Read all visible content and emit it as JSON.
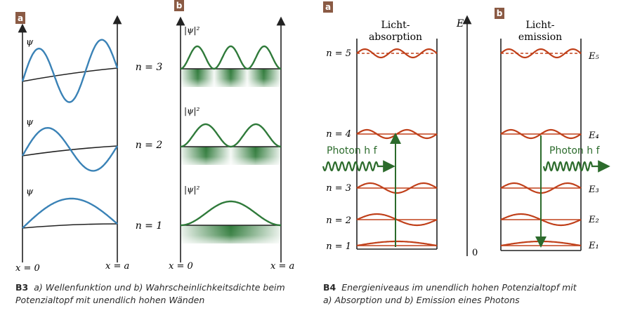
{
  "left": {
    "panel_a_tag": "a",
    "panel_b_tag": "b",
    "psi_label": "ψ",
    "psi_sq_label": "|ψ|²",
    "n_labels": [
      "n = 3",
      "n = 2",
      "n = 1"
    ],
    "x_start": "x = 0",
    "x_end": "x = a",
    "caption_num": "B3",
    "caption_line1": "a) Wellenfunktion und b) Wahrscheinlichkeitsdichte beim",
    "caption_line2": "Potenzialtopf mit unendlich hohen Wänden"
  },
  "right": {
    "panel_a_tag": "a",
    "panel_b_tag": "b",
    "absorption_title": [
      "Licht-",
      "absorption"
    ],
    "emission_title": [
      "Licht-",
      "emission"
    ],
    "energy_axis": "E",
    "zero": "0",
    "levels_left": [
      "n = 5",
      "n = 4",
      "n = 3",
      "n = 2",
      "n = 1"
    ],
    "levels_right": [
      "E₅",
      "E₄",
      "E₃",
      "E₂",
      "E₁"
    ],
    "photon_label": "Photon h f",
    "caption_num": "B4",
    "caption_line1": "Energieniveaus im unendlich hohen Potenzialtopf mit",
    "caption_line2": "a) Absorption und b) Emission eines Photons"
  },
  "colors": {
    "tag_bg": "#8a5a44",
    "wave_blue": "#3a82b6",
    "density_green": "#2f7a3a",
    "level_orange": "#c0401a",
    "arrow_green": "#2c6b2c"
  }
}
